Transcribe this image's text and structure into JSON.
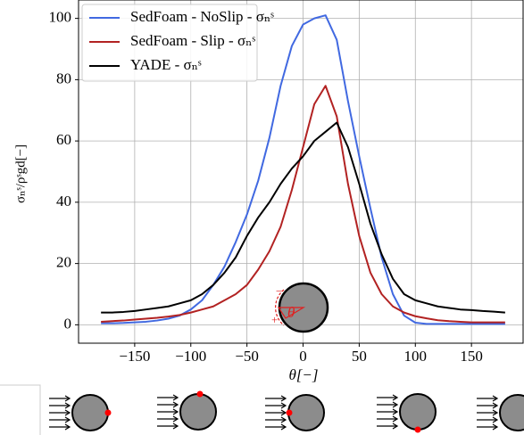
{
  "chart_data": {
    "type": "line",
    "xlabel": "θ[−]",
    "ylabel": "σₙˢ/ρˢgd[−]",
    "x": [
      -180,
      -170,
      -160,
      -150,
      -140,
      -130,
      -120,
      -110,
      -100,
      -90,
      -80,
      -70,
      -60,
      -50,
      -40,
      -30,
      -20,
      -10,
      0,
      10,
      20,
      30,
      40,
      50,
      60,
      70,
      80,
      90,
      100,
      110,
      120,
      130,
      140,
      150,
      160,
      170,
      180
    ],
    "series": [
      {
        "name": "SedFoam - NoSlip - σₙˢ",
        "color": "#4169e1",
        "values": [
          0.5,
          0.5,
          0.6,
          0.8,
          1,
          1.4,
          2,
          3,
          5,
          8,
          13,
          19,
          27,
          36,
          47,
          61,
          78,
          91,
          98,
          100,
          101,
          93,
          73,
          55,
          38,
          22,
          10,
          3,
          0.7,
          0.3,
          0.3,
          0.3,
          0.3,
          0.3,
          0.3,
          0.3,
          0.3
        ]
      },
      {
        "name": "SedFoam - Slip - σₙˢ",
        "color": "#b22222",
        "values": [
          1,
          1.2,
          1.4,
          1.7,
          2,
          2.3,
          2.7,
          3.2,
          4,
          5,
          6,
          8,
          10,
          13,
          18,
          24,
          32,
          44,
          58,
          72,
          78,
          68,
          46,
          29,
          17,
          10,
          6,
          4,
          2.8,
          2.1,
          1.5,
          1.2,
          1,
          0.8,
          0.8,
          0.8,
          0.8
        ]
      },
      {
        "name": "YADE - σₙˢ",
        "color": "#000000",
        "values": [
          4,
          4,
          4.2,
          4.5,
          5,
          5.5,
          6,
          7,
          8,
          10,
          13,
          17,
          22,
          29,
          35,
          40,
          46,
          51,
          55,
          60,
          63,
          66,
          58,
          46,
          33,
          23,
          15,
          10,
          8,
          7,
          6,
          5.5,
          5,
          4.8,
          4.5,
          4.3,
          4
        ]
      }
    ],
    "xlim": [
      -200,
      196
    ],
    "ylim": [
      -6,
      106
    ],
    "xticks": [
      {
        "value": -150,
        "label": "−150"
      },
      {
        "value": -100,
        "label": "−100"
      },
      {
        "value": -50,
        "label": "−50"
      },
      0,
      50,
      100,
      150
    ],
    "yticks": [
      0,
      20,
      40,
      60,
      80,
      100
    ],
    "grid": true,
    "legend": "upper left",
    "inset": {
      "angle": "θ",
      "plus": "+",
      "minus": "−"
    }
  }
}
